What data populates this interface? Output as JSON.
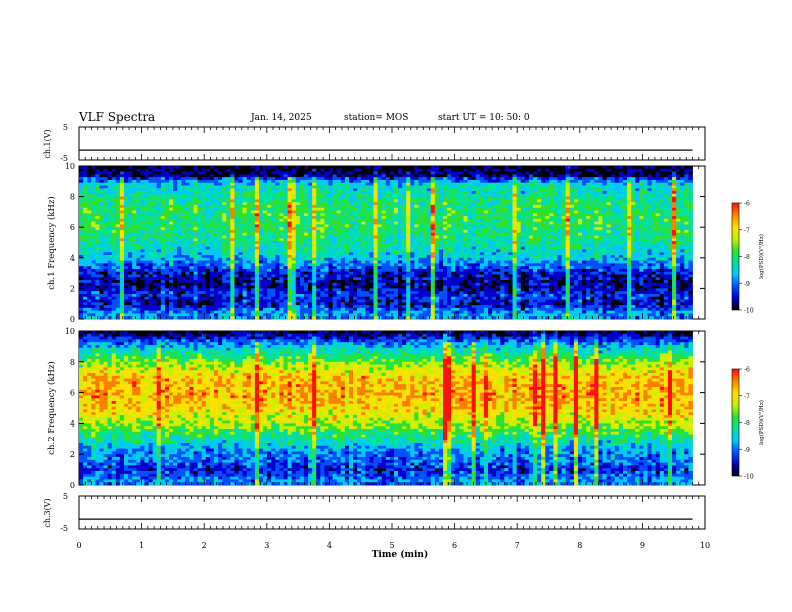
{
  "header": {
    "title": "VLF Spectra",
    "date": "Jan. 14, 2025",
    "station": "station= MOS",
    "start": "start  UT =   10: 50: 0"
  },
  "colors": {
    "colormap": [
      "#000000",
      "#0000c8",
      "#0050ff",
      "#00c8ff",
      "#00e0a0",
      "#30e030",
      "#c8f000",
      "#ffe000",
      "#ff8000",
      "#ff1010",
      "#ffffff"
    ]
  },
  "chart_data": [
    {
      "type": "line",
      "panel": "ch1-voltage",
      "ylabel": "ch.1(V)",
      "ylim": [
        -5,
        5
      ],
      "yticks": [
        "5",
        "-5"
      ],
      "xlim": [
        0,
        10
      ],
      "series": [
        {
          "x": [
            0,
            9.8
          ],
          "values": [
            -2,
            -2
          ]
        }
      ]
    },
    {
      "type": "heatmap",
      "panel": "ch1-spectrogram",
      "ylabel": "ch.1 Frequency (kHz)",
      "ylim": [
        0,
        10
      ],
      "yticks": [
        "0",
        "2",
        "4",
        "6",
        "8",
        "10"
      ],
      "xlim": [
        0,
        10
      ],
      "data_xmax": 9.8,
      "z_label": "log(PSD)(V²/Hz)",
      "zlim": [
        -10,
        -6
      ],
      "colorbar_ticks": [
        "-6",
        "-7",
        "-8",
        "-9",
        "-10"
      ],
      "profile_khz": [
        0.3,
        1.0,
        1.6,
        2.2,
        3.0,
        4.0,
        5.0,
        6.0,
        7.0,
        8.0,
        8.8,
        9.4,
        9.9
      ],
      "profile_level": [
        -8.8,
        -9.6,
        -9.3,
        -9.7,
        -9.5,
        -8.6,
        -8.2,
        -8.0,
        -8.0,
        -8.2,
        -8.5,
        -9.8,
        -10.0
      ]
    },
    {
      "type": "heatmap",
      "panel": "ch2-spectrogram",
      "ylabel": "ch.2 Frequency (kHz)",
      "ylim": [
        0,
        10
      ],
      "yticks": [
        "0",
        "2",
        "4",
        "6",
        "8",
        "10"
      ],
      "xlim": [
        0,
        10
      ],
      "data_xmax": 9.8,
      "z_label": "log(PSD)(V²/Hz)",
      "zlim": [
        -10,
        -6
      ],
      "colorbar_ticks": [
        "-6",
        "-7",
        "-8",
        "-9",
        "-10"
      ],
      "profile_khz": [
        0.3,
        1.0,
        1.6,
        2.2,
        3.0,
        4.0,
        5.0,
        6.0,
        7.0,
        8.0,
        8.8,
        9.4,
        9.9
      ],
      "profile_level": [
        -8.9,
        -9.4,
        -9.0,
        -8.9,
        -8.2,
        -7.4,
        -6.9,
        -6.7,
        -6.8,
        -7.6,
        -8.4,
        -9.2,
        -9.9
      ]
    },
    {
      "type": "line",
      "panel": "ch3-voltage",
      "ylabel": "ch.3(V)",
      "ylim": [
        -5,
        5
      ],
      "yticks": [
        "5",
        "-5"
      ],
      "xlim": [
        0,
        10
      ],
      "series": [
        {
          "x": [
            0,
            9.8
          ],
          "values": [
            -2,
            -2
          ]
        }
      ],
      "xlabel": "Time (min)",
      "xticks": [
        "0",
        "1",
        "2",
        "3",
        "4",
        "5",
        "6",
        "7",
        "8",
        "9",
        "10"
      ]
    }
  ]
}
